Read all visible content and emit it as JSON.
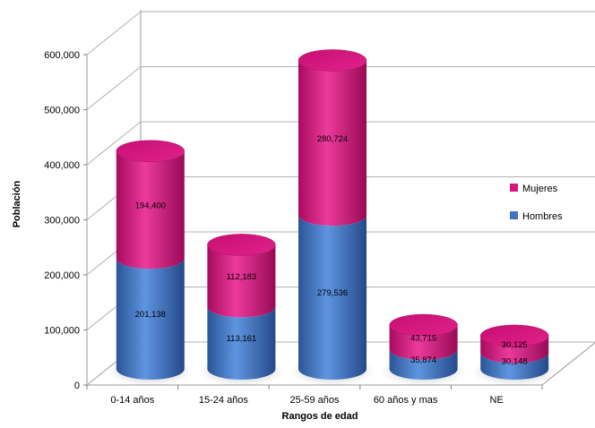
{
  "chart_data": {
    "type": "bar",
    "stacked": true,
    "style": "3d-cylinder",
    "categories": [
      "0-14 años",
      "15-24 años",
      "25-59 años",
      "60 años y mas",
      "NE"
    ],
    "series": [
      {
        "name": "Hombres",
        "values": [
          201138,
          113161,
          279536,
          35874,
          30148
        ],
        "labels": [
          "201,138",
          "113,161",
          "279,536",
          "35,874",
          "30,148"
        ],
        "color": "#3f74c4"
      },
      {
        "name": "Mujeres",
        "values": [
          194400,
          112183,
          280724,
          43715,
          30125
        ],
        "labels": [
          "194,400",
          "112,183",
          "280,724",
          "43,715",
          "30,125"
        ],
        "color": "#d8127e"
      }
    ],
    "xlabel": "Rangos de edad",
    "ylabel": "Población",
    "ylim": [
      0,
      600000
    ],
    "yticks": [
      0,
      100000,
      200000,
      300000,
      400000,
      500000,
      600000
    ],
    "ytick_labels": [
      "0",
      "100,000",
      "200,000",
      "300,000",
      "400,000",
      "500,000",
      "600,000"
    ],
    "grid": true,
    "legend_position": "right"
  }
}
